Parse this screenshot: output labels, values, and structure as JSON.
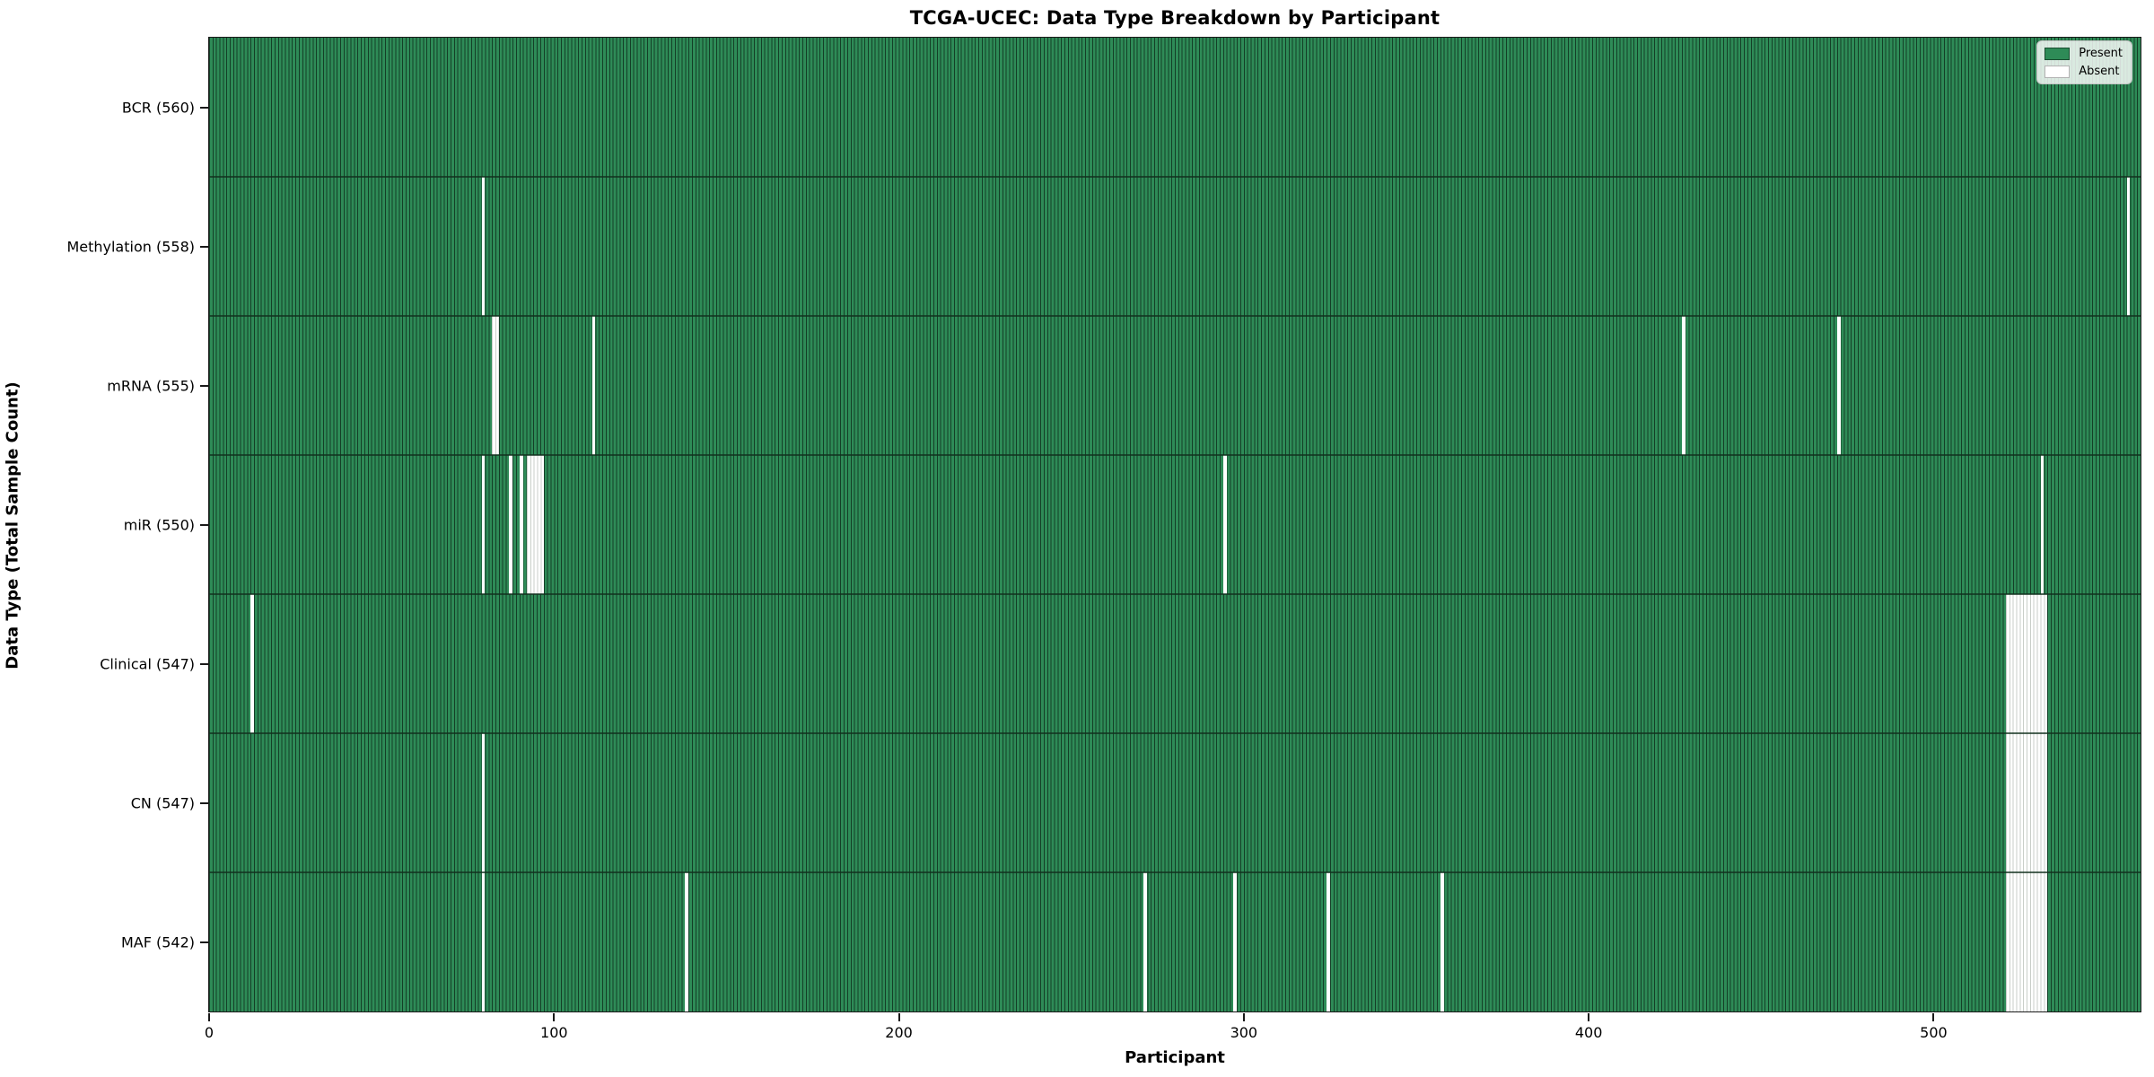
{
  "chart_data": {
    "type": "heatmap",
    "title": "TCGA-UCEC: Data Type Breakdown by Participant",
    "xlabel": "Participant",
    "ylabel": "Data Type (Total Sample Count)",
    "n_participants": 560,
    "x_range": [
      0,
      560
    ],
    "x_ticks": [
      0,
      100,
      200,
      300,
      400,
      500
    ],
    "grid": false,
    "legend_position": "upper right",
    "legend_items": [
      {
        "label": "Present",
        "color": "#2e8b57"
      },
      {
        "label": "Absent",
        "color": "#ffffff"
      }
    ],
    "rows": [
      {
        "label": "BCR (560)",
        "data_type": "BCR",
        "present_count": 560,
        "absent_participants": []
      },
      {
        "label": "Methylation (558)",
        "data_type": "Methylation",
        "present_count": 558,
        "absent_participants": [
          79,
          556
        ]
      },
      {
        "label": "mRNA (555)",
        "data_type": "mRNA",
        "present_count": 555,
        "absent_participants": [
          82,
          83,
          111,
          427,
          472
        ]
      },
      {
        "label": "miR (550)",
        "data_type": "miR",
        "present_count": 550,
        "absent_participants": [
          79,
          87,
          90,
          92,
          93,
          94,
          95,
          96,
          294,
          531
        ]
      },
      {
        "label": "Clinical (547)",
        "data_type": "Clinical",
        "present_count": 547,
        "absent_participants": [
          12,
          521,
          522,
          523,
          524,
          525,
          526,
          527,
          528,
          529,
          530,
          531,
          532
        ]
      },
      {
        "label": "CN (547)",
        "data_type": "CN",
        "present_count": 547,
        "absent_participants": [
          79,
          521,
          522,
          523,
          524,
          525,
          526,
          527,
          528,
          529,
          530,
          531,
          532
        ]
      },
      {
        "label": "MAF (542)",
        "data_type": "MAF",
        "present_count": 542,
        "absent_participants": [
          79,
          138,
          271,
          297,
          324,
          357,
          521,
          522,
          523,
          524,
          525,
          526,
          527,
          528,
          529,
          530,
          531,
          532
        ]
      }
    ]
  },
  "colors": {
    "present_fill": "#2e8b57",
    "bar_edge": "#143f27",
    "absent_fill": "#ffffff",
    "absent_edge": "#c9cec9",
    "row_boundary": "#12301e",
    "spine": "#1a1a1a",
    "text": "#000000",
    "legend_bg": "#ffffff",
    "legend_border": "#c4c4c4"
  }
}
